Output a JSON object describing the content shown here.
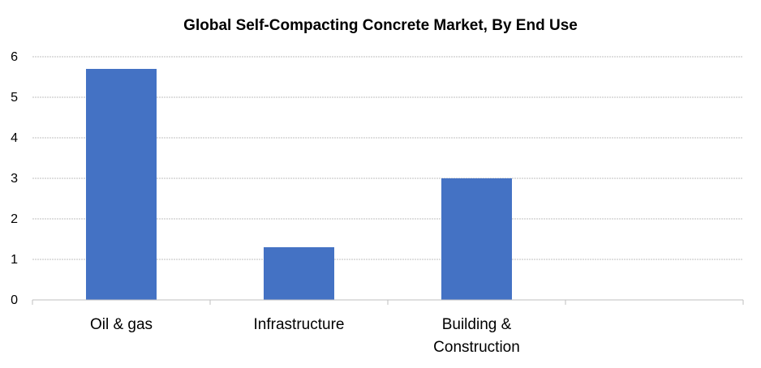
{
  "chart_data": {
    "type": "bar",
    "title": "Global Self-Compacting Concrete Market, By End Use",
    "categories": [
      [
        "Oil & gas"
      ],
      [
        "Infrastructure"
      ],
      [
        "Building &",
        "Construction"
      ],
      [
        ""
      ]
    ],
    "values": [
      5.7,
      1.3,
      3.0,
      null
    ],
    "yticks": [
      "0",
      "1",
      "2",
      "3",
      "4",
      "5",
      "6"
    ],
    "ylim": [
      0,
      6
    ],
    "grid": true,
    "legend": "none",
    "colors": {
      "bar": "#4472C4",
      "grid": "#BFBFBF",
      "axis": "#BFBFBF"
    }
  }
}
